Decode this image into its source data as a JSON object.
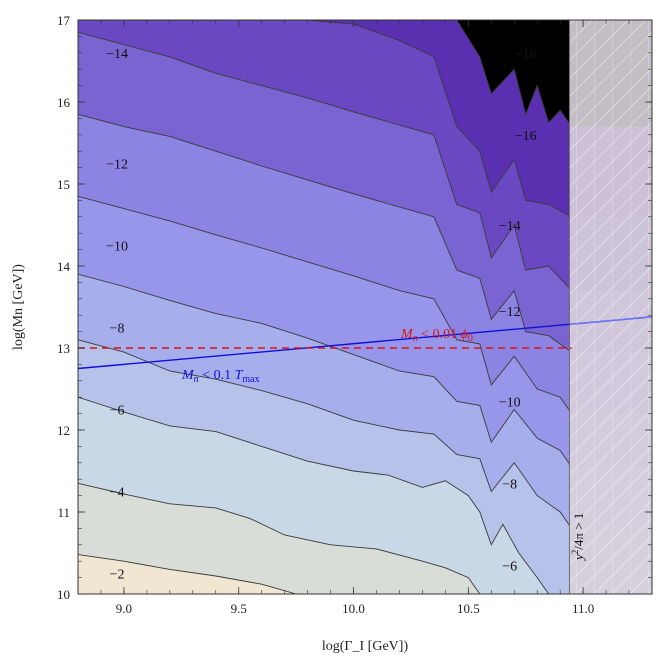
{
  "chart_data": {
    "type": "contour",
    "xlabel": "log(Γ_I [GeV])",
    "ylabel": "log(Mn [GeV])",
    "xlim": [
      8.8,
      11.3
    ],
    "ylim": [
      10.0,
      17.0
    ],
    "x_ticks": [
      "9.0",
      "9.5",
      "10.0",
      "10.5",
      "11.0"
    ],
    "x_tick_values": [
      9.0,
      9.5,
      10.0,
      10.5,
      11.0
    ],
    "y_ticks": [
      "10",
      "11",
      "12",
      "13",
      "14",
      "15",
      "16",
      "17"
    ],
    "y_tick_values": [
      10,
      11,
      12,
      13,
      14,
      15,
      16,
      17
    ],
    "contour_levels": [
      -2,
      -4,
      -6,
      -8,
      -10,
      -12,
      -14,
      -16,
      -18
    ],
    "contour_labels": [
      {
        "text": "−2",
        "x": 8.97,
        "y": 10.25
      },
      {
        "text": "−4",
        "x": 8.97,
        "y": 11.25
      },
      {
        "text": "−6",
        "x": 8.97,
        "y": 12.25
      },
      {
        "text": "−8",
        "x": 8.97,
        "y": 13.25
      },
      {
        "text": "−10",
        "x": 8.97,
        "y": 14.25
      },
      {
        "text": "−12",
        "x": 8.97,
        "y": 15.25
      },
      {
        "text": "−14",
        "x": 8.97,
        "y": 16.6
      },
      {
        "text": "−18",
        "x": 10.75,
        "y": 16.6
      },
      {
        "text": "−16",
        "x": 10.75,
        "y": 15.6
      },
      {
        "text": "−14",
        "x": 10.68,
        "y": 14.5
      },
      {
        "text": "−12",
        "x": 10.68,
        "y": 13.45
      },
      {
        "text": "−10",
        "x": 10.68,
        "y": 12.35
      },
      {
        "text": "−8",
        "x": 10.68,
        "y": 11.35
      },
      {
        "text": "−6",
        "x": 10.68,
        "y": 10.35
      }
    ],
    "lines": [
      {
        "label": "M_n < 0.1 T_max",
        "style": "solid",
        "color": "#1010dd",
        "x": [
          8.8,
          11.3
        ],
        "y": [
          12.75,
          13.38
        ]
      },
      {
        "label": "M_n < 0.01 φ_0",
        "style": "dashed",
        "color": "#e01010",
        "x": [
          8.8,
          10.95
        ],
        "y": [
          13.0,
          13.0
        ]
      }
    ],
    "excluded_region": {
      "label": "y²/4π > 1",
      "x_min": 10.94,
      "x_max": 11.3
    }
  },
  "annotations": {
    "tmax_prefix": "M",
    "tmax_sub": "n",
    "tmax_middle": " < 0.1 ",
    "tmax_T": "T",
    "tmax_T_sub": "max",
    "phi_prefix": "M",
    "phi_sub": "n",
    "phi_middle": " < 0.01 ",
    "phi_symbol": "ϕ",
    "phi_sub2": "0",
    "excl_y": "y",
    "excl_sup": "2",
    "excl_rest": "/4π > 1"
  },
  "colors": {
    "level_0": "#f0e6d2",
    "level_1": "#d8ddd8",
    "level_2": "#c8d8e6",
    "level_3": "#b6c2ea",
    "level_4": "#a6aeec",
    "level_5": "#9896ea",
    "level_6": "#8c84e2",
    "level_7": "#7a64d2",
    "level_8": "#6a48c2",
    "level_9": "#5a30b0",
    "excluded": "#d9d2dc"
  }
}
